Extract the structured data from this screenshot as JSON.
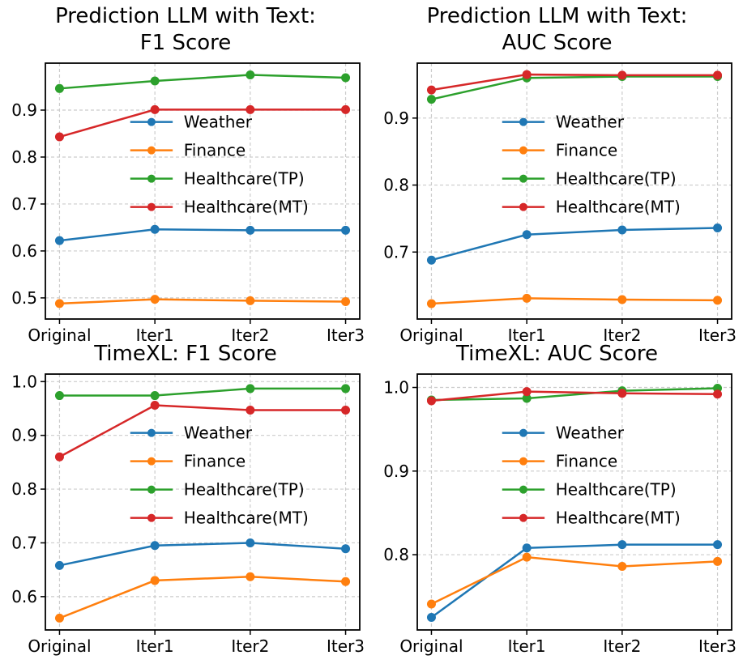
{
  "figure": {
    "background": "#ffffff",
    "text_color": "#000000",
    "grid_color": "#cccccc"
  },
  "chart_data": [
    {
      "id": "prediction-llm-f1",
      "type": "line",
      "title": "Prediction LLM with Text:\nF1 Score",
      "xlabel": "",
      "ylabel": "",
      "categories": [
        "Original",
        "Iter1",
        "Iter2",
        "Iter3"
      ],
      "series": [
        {
          "name": "Weather",
          "color": "#1f77b4",
          "values": [
            0.622,
            0.646,
            0.644,
            0.644
          ]
        },
        {
          "name": "Finance",
          "color": "#ff7f0e",
          "values": [
            0.488,
            0.497,
            0.494,
            0.492
          ]
        },
        {
          "name": "Healthcare(TP)",
          "color": "#2ca02c",
          "values": [
            0.946,
            0.962,
            0.975,
            0.969
          ]
        },
        {
          "name": "Healthcare(MT)",
          "color": "#d62728",
          "values": [
            0.843,
            0.901,
            0.901,
            0.901
          ]
        }
      ],
      "yticks": [
        0.5,
        0.6,
        0.7,
        0.8,
        0.9
      ],
      "ylim": [
        0.455,
        1.0
      ],
      "grid": true,
      "legend_position": "center"
    },
    {
      "id": "prediction-llm-auc",
      "type": "line",
      "title": "Prediction LLM with Text:\nAUC Score",
      "xlabel": "",
      "ylabel": "",
      "categories": [
        "Original",
        "Iter1",
        "Iter2",
        "Iter3"
      ],
      "series": [
        {
          "name": "Weather",
          "color": "#1f77b4",
          "values": [
            0.688,
            0.726,
            0.733,
            0.736
          ]
        },
        {
          "name": "Finance",
          "color": "#ff7f0e",
          "values": [
            0.623,
            0.631,
            0.629,
            0.628
          ]
        },
        {
          "name": "Healthcare(TP)",
          "color": "#2ca02c",
          "values": [
            0.928,
            0.96,
            0.962,
            0.962
          ]
        },
        {
          "name": "Healthcare(MT)",
          "color": "#d62728",
          "values": [
            0.942,
            0.965,
            0.964,
            0.964
          ]
        }
      ],
      "yticks": [
        0.7,
        0.8,
        0.9
      ],
      "ylim": [
        0.6,
        0.982
      ],
      "grid": true,
      "legend_position": "center"
    },
    {
      "id": "timexl-f1",
      "type": "line",
      "title": "TimeXL: F1 Score",
      "xlabel": "",
      "ylabel": "",
      "categories": [
        "Original",
        "Iter1",
        "Iter2",
        "Iter3"
      ],
      "series": [
        {
          "name": "Weather",
          "color": "#1f77b4",
          "values": [
            0.658,
            0.695,
            0.7,
            0.689
          ]
        },
        {
          "name": "Finance",
          "color": "#ff7f0e",
          "values": [
            0.56,
            0.63,
            0.637,
            0.628
          ]
        },
        {
          "name": "Healthcare(TP)",
          "color": "#2ca02c",
          "values": [
            0.974,
            0.974,
            0.987,
            0.987
          ]
        },
        {
          "name": "Healthcare(MT)",
          "color": "#d62728",
          "values": [
            0.86,
            0.956,
            0.947,
            0.947
          ]
        }
      ],
      "yticks": [
        0.6,
        0.7,
        0.8,
        0.9,
        1.0
      ],
      "ylim": [
        0.538,
        1.014
      ],
      "grid": true,
      "legend_position": "center"
    },
    {
      "id": "timexl-auc",
      "type": "line",
      "title": "TimeXL: AUC Score",
      "xlabel": "",
      "ylabel": "",
      "categories": [
        "Original",
        "Iter1",
        "Iter2",
        "Iter3"
      ],
      "series": [
        {
          "name": "Weather",
          "color": "#1f77b4",
          "values": [
            0.725,
            0.808,
            0.812,
            0.812
          ]
        },
        {
          "name": "Finance",
          "color": "#ff7f0e",
          "values": [
            0.741,
            0.797,
            0.786,
            0.792
          ]
        },
        {
          "name": "Healthcare(TP)",
          "color": "#2ca02c",
          "values": [
            0.985,
            0.987,
            0.996,
            0.999
          ]
        },
        {
          "name": "Healthcare(MT)",
          "color": "#d62728",
          "values": [
            0.984,
            0.995,
            0.993,
            0.992
          ]
        }
      ],
      "yticks": [
        0.8,
        0.9,
        1.0
      ],
      "ylim": [
        0.71,
        1.016
      ],
      "grid": true,
      "legend_position": "center"
    }
  ]
}
